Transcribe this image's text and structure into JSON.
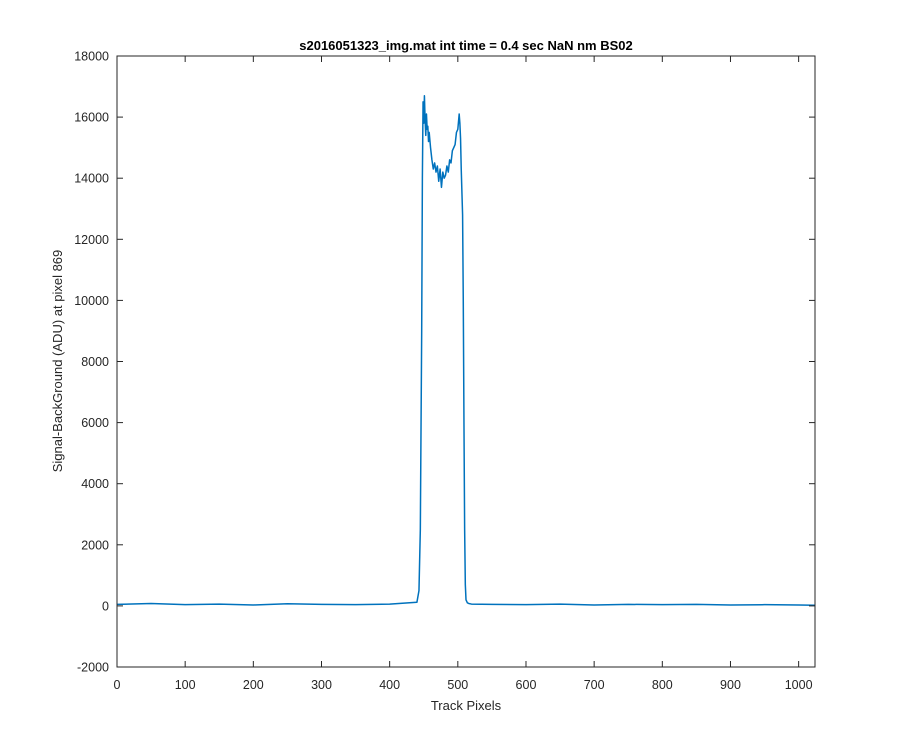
{
  "chart_data": {
    "type": "line",
    "title": "s2016051323_img.mat int time = 0.4 sec  NaN nm BS02",
    "xlabel": "Track Pixels",
    "ylabel": "Signal-BackGround (ADU) at pixel 869",
    "xlim": [
      0,
      1024
    ],
    "ylim": [
      -2000,
      18000
    ],
    "xticks": [
      0,
      100,
      200,
      300,
      400,
      500,
      600,
      700,
      800,
      900,
      1000
    ],
    "xtick_labels": [
      "0",
      "100",
      "200",
      "300",
      "400",
      "500",
      "600",
      "700",
      "800",
      "900",
      "1000"
    ],
    "yticks": [
      -2000,
      0,
      2000,
      4000,
      6000,
      8000,
      10000,
      12000,
      14000,
      16000,
      18000
    ],
    "ytick_labels": [
      "-2000",
      "0",
      "2000",
      "4000",
      "6000",
      "8000",
      "10000",
      "12000",
      "14000",
      "16000",
      "18000"
    ],
    "grid": false,
    "line_color": "#0072BD",
    "series": [
      {
        "x": [
          0,
          50,
          100,
          150,
          200,
          250,
          300,
          350,
          400,
          440,
          443,
          445,
          447,
          448,
          449,
          450,
          451,
          452,
          453,
          454,
          455,
          456,
          457,
          458,
          460,
          462,
          464,
          466,
          468,
          470,
          472,
          474,
          476,
          478,
          480,
          482,
          484,
          486,
          488,
          490,
          492,
          494,
          496,
          498,
          500,
          502,
          503,
          504,
          505,
          507,
          508,
          509,
          510,
          511,
          512,
          514,
          516,
          520,
          550,
          600,
          650,
          700,
          750,
          800,
          850,
          900,
          950,
          1000,
          1024
        ],
        "y": [
          50,
          80,
          40,
          60,
          30,
          70,
          50,
          40,
          60,
          120,
          500,
          2500,
          9000,
          14000,
          16500,
          15800,
          16700,
          15900,
          15400,
          16100,
          15600,
          15700,
          15200,
          15500,
          15000,
          14600,
          14300,
          14500,
          14200,
          14400,
          13900,
          14300,
          13700,
          14200,
          14000,
          14100,
          14400,
          14200,
          14600,
          14500,
          14900,
          15000,
          15100,
          15500,
          15600,
          16100,
          15800,
          15300,
          14300,
          12800,
          10000,
          6000,
          2500,
          700,
          200,
          100,
          80,
          60,
          50,
          40,
          60,
          30,
          50,
          40,
          50,
          30,
          40,
          30,
          20
        ]
      }
    ]
  }
}
